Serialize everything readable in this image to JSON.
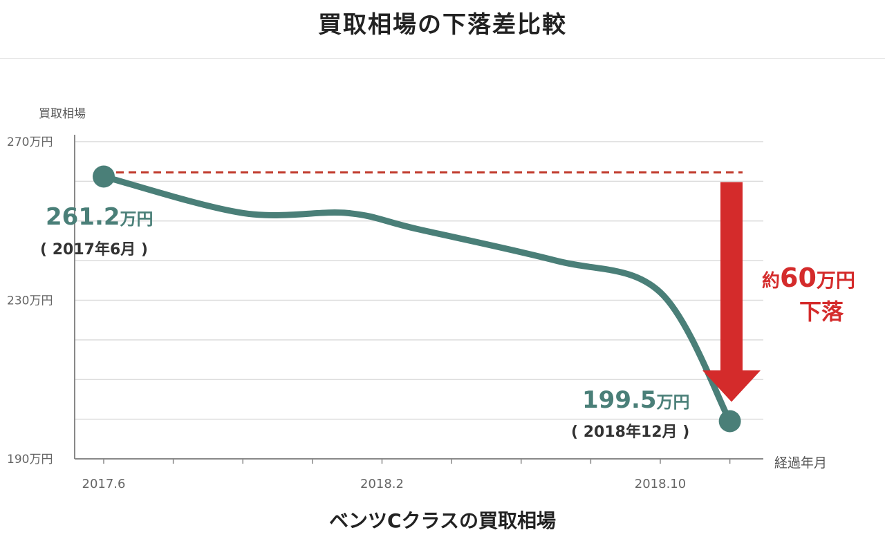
{
  "title": "買取相場の下落差比較",
  "caption": "ベンツCクラスの買取相場",
  "colors": {
    "line": "#4a7f78",
    "arrow": "#d42b2b",
    "grid": "#dcdcdc",
    "axis": "#888888"
  },
  "chart_data": {
    "type": "line",
    "ylabel": "買取相場",
    "xlabel": "経過年月",
    "ylim": [
      190,
      270
    ],
    "y_ticks": [
      {
        "value": 270,
        "label": "270万円"
      },
      {
        "value": 230,
        "label": "230万円"
      },
      {
        "value": 190,
        "label": "190万円"
      }
    ],
    "y_grid_step": 10,
    "x_ticks": [
      "2017.6",
      "2018.2",
      "2018.10"
    ],
    "series": [
      {
        "points": [
          {
            "x": "2017.6",
            "y": 261.2
          },
          {
            "x": "2017.10",
            "y": 252
          },
          {
            "x": "2018.1",
            "y": 252
          },
          {
            "x": "2018.3",
            "y": 248
          },
          {
            "x": "2018.7",
            "y": 240
          },
          {
            "x": "2018.10",
            "y": 232
          },
          {
            "x": "2018.12",
            "y": 199.5
          }
        ]
      }
    ],
    "annotations": {
      "start": {
        "value": "261.2",
        "unit": "万円",
        "date": "( 2017年6月 )"
      },
      "end": {
        "value": "199.5",
        "unit": "万円",
        "date": "( 2018年12月 )"
      },
      "drop": {
        "prefix": "約",
        "amount": "60",
        "unit": "万円",
        "word": "下落"
      }
    }
  }
}
